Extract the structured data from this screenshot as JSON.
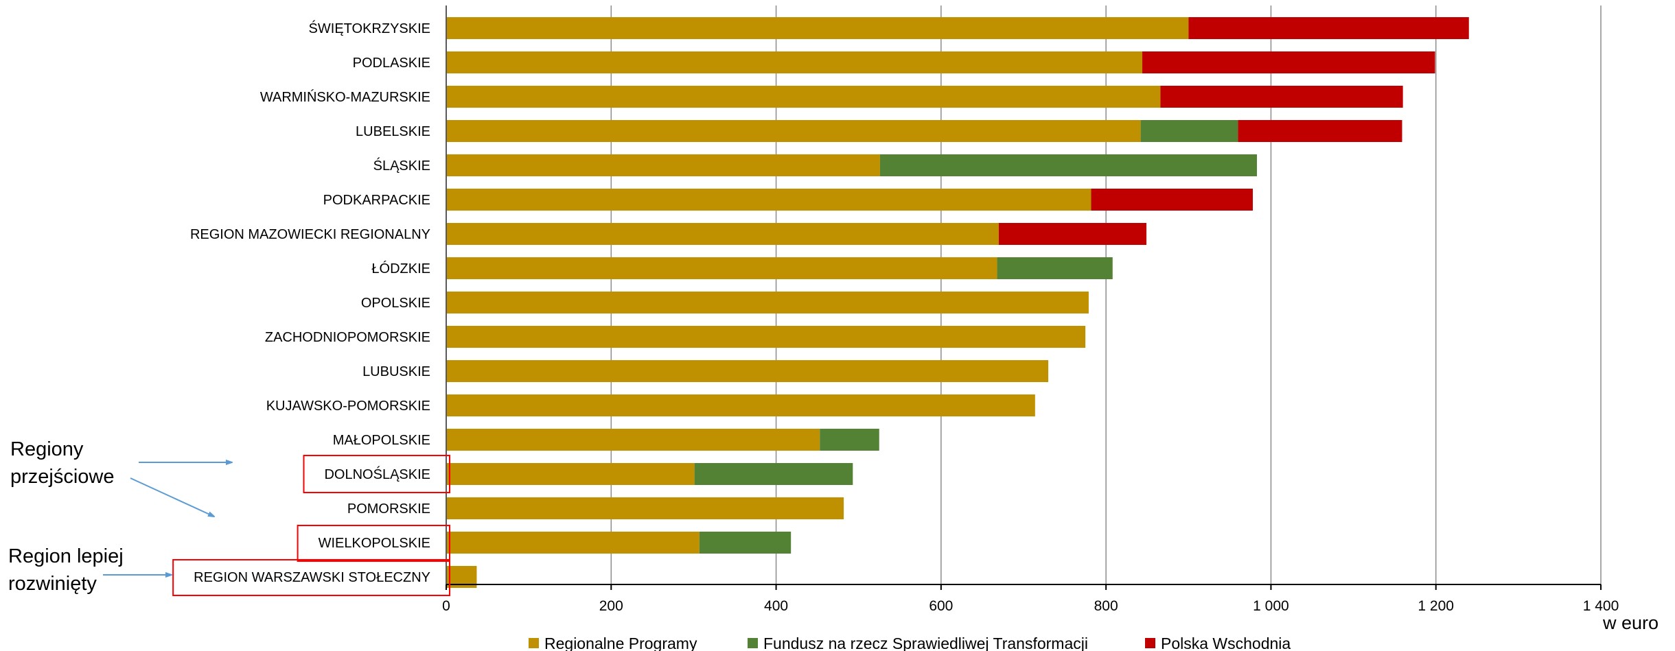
{
  "chart_data": {
    "type": "bar",
    "orientation": "horizontal",
    "stacked": true,
    "xlabel": "w euro",
    "xlim": [
      0,
      1400
    ],
    "xticks": [
      0,
      200,
      400,
      600,
      800,
      1000,
      1200,
      1400
    ],
    "xtick_labels": [
      "0",
      "200",
      "400",
      "600",
      "800",
      "1 000",
      "1 200",
      "1 400"
    ],
    "grid": "vertical",
    "legend_position": "bottom",
    "categories": [
      "ŚWIĘTOKRZYSKIE",
      "PODLASKIE",
      "WARMIŃSKO-MAZURSKIE",
      "LUBELSKIE",
      "ŚLĄSKIE",
      "PODKARPACKIE",
      "REGION MAZOWIECKI REGIONALNY",
      "ŁÓDZKIE",
      "OPOLSKIE",
      "ZACHODNIOPOMORSKIE",
      "LUBUSKIE",
      "KUJAWSKO-POMORSKIE",
      "MAŁOPOLSKIE",
      "DOLNOŚLĄSKIE",
      "POMORSKIE",
      "WIELKOPOLSKIE",
      "REGION WARSZAWSKI STOŁECZNY"
    ],
    "series": [
      {
        "name": "Regionalne Programy",
        "color": "#BF9000",
        "values": [
          900,
          844,
          866,
          842,
          526,
          782,
          670,
          668,
          779,
          775,
          730,
          714,
          453,
          301,
          482,
          307,
          37
        ]
      },
      {
        "name": "Fundusz na rzecz Sprawiedliwej Transformacji",
        "color": "#548235",
        "values": [
          0,
          0,
          0,
          118,
          457,
          0,
          0,
          140,
          0,
          0,
          0,
          0,
          72,
          192,
          0,
          111,
          0
        ]
      },
      {
        "name": "Polska Wschodnia",
        "color": "#C00000",
        "values": [
          340,
          355,
          294,
          199,
          0,
          196,
          179,
          0,
          0,
          0,
          0,
          0,
          0,
          0,
          0,
          0,
          0
        ]
      }
    ],
    "annotations": [
      {
        "text_lines": [
          "Regiony",
          "przejściowe"
        ],
        "points_to": [
          "DOLNOŚLĄSKIE",
          "WIELKOPOLSKIE"
        ]
      },
      {
        "text_lines": [
          "Region lepiej",
          "rozwinięty"
        ],
        "points_to": [
          "REGION WARSZAWSKI STOŁECZNY"
        ]
      }
    ],
    "highlighted_categories": [
      "DOLNOŚLĄSKIE",
      "WIELKOPOLSKIE",
      "REGION WARSZAWSKI STOŁECZNY"
    ],
    "highlight_color": "#FF0000",
    "arrow_color": "#5B9BD5"
  }
}
